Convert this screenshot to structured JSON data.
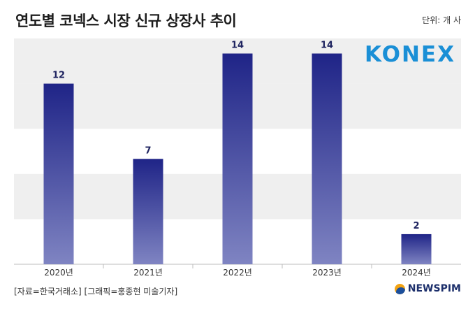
{
  "header": {
    "title": "연도별 코넥스 시장 신규 상장사 추이",
    "unit": "단위: 개 사"
  },
  "logo": {
    "text": "KONEX"
  },
  "footer": {
    "source": "[자료=한국거래소] [그래픽=홍종현 미술기자]",
    "brand": "NEWSPIM"
  },
  "colors": {
    "bar_top": "#1f2487",
    "bar_bottom": "#7f84c2",
    "band": "#efefef",
    "logo": "#1a8fd6"
  },
  "chart_data": {
    "type": "bar",
    "categories": [
      "2020년",
      "2021년",
      "2022년",
      "2023년",
      "2024년"
    ],
    "values": [
      12,
      7,
      14,
      14,
      2
    ],
    "ylim": [
      0,
      15
    ],
    "grid": "alternating horizontal bands",
    "title": "연도별 코넥스 시장 신규 상장사 추이",
    "ylabel": "",
    "xlabel": ""
  }
}
